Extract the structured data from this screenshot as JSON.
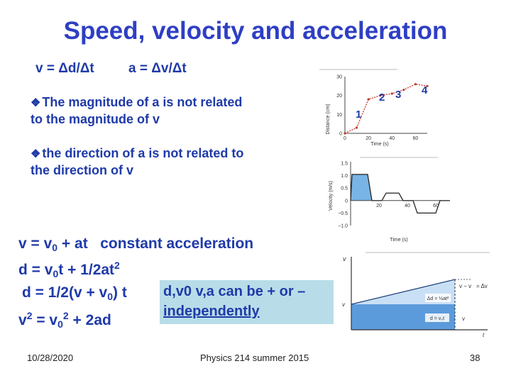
{
  "title": "Speed, velocity and acceleration",
  "defs": {
    "velocity": "v = Δd/Δt",
    "acceleration": "a = Δv/Δt"
  },
  "bullets": [
    {
      "icon": "diamond-bullet-icon",
      "line1": "The magnitude of a is not related",
      "line2": "to the magnitude of v"
    },
    {
      "icon": "diamond-bullet-icon",
      "line1": "the direction of a is not related to",
      "line2": "the direction of v"
    }
  ],
  "equations": {
    "eq1": {
      "a": "v = v",
      "sub": "0",
      "b": " + at   constant acceleration"
    },
    "eq2": {
      "a": "d = v",
      "sub": "0",
      "b": "t + 1/2at",
      "sup": "2"
    },
    "eq3": {
      "a": "d = 1/2(v + v",
      "sub": "0",
      "b": ") t"
    },
    "eq4": {
      "a": "v",
      "sup1": "2",
      "b": " = v",
      "sub": "0",
      "sup2": "2",
      "c": " + 2ad"
    }
  },
  "callout": {
    "line1": "d,v0 v,a can be + or –",
    "line2": "independently"
  },
  "graph1": {
    "ylabel": "Distance (cm)",
    "xlabel": "Time (s)",
    "yticks": [
      "30",
      "20",
      "10",
      "0"
    ],
    "xticks": [
      "0",
      "20",
      "40",
      "60"
    ],
    "point_labels": [
      "1",
      "2",
      "3",
      "4"
    ],
    "chart_data": {
      "type": "line",
      "x": [
        0,
        10,
        20,
        30,
        40,
        50,
        60,
        70
      ],
      "y": [
        0,
        3,
        18,
        20,
        21,
        23,
        26,
        25
      ],
      "xlim": [
        0,
        70
      ],
      "ylim": [
        0,
        30
      ]
    }
  },
  "graph2": {
    "ylabel": "Velocity (m/s)",
    "xlabel": "Time (s)",
    "yticks": [
      "1.5",
      "1.0",
      "0.5",
      "0",
      "−0.5",
      "−1.0"
    ],
    "xticks": [
      "20",
      "40",
      "60"
    ],
    "chart_data": {
      "type": "line",
      "x": [
        0,
        1,
        12,
        15,
        22,
        25,
        34,
        37,
        44,
        47,
        60,
        63,
        70
      ],
      "y": [
        0,
        1.05,
        1.05,
        0,
        0,
        0.3,
        0.3,
        0,
        0,
        -0.5,
        -0.5,
        0,
        0
      ],
      "xlim": [
        0,
        70
      ],
      "ylim": [
        -1.0,
        1.5
      ]
    }
  },
  "graph3": {
    "labels": {
      "v": "v",
      "v_minus": "v − v",
      "dv": "= Δv",
      "v0": "v",
      "v0_right": "v",
      "t": "t"
    },
    "regions": {
      "top": "Δd = ½at²",
      "bottom": "d = v₀t"
    }
  },
  "footer": {
    "date": "10/28/2020",
    "course": "Physics 214 summer 2015",
    "page": "38"
  }
}
